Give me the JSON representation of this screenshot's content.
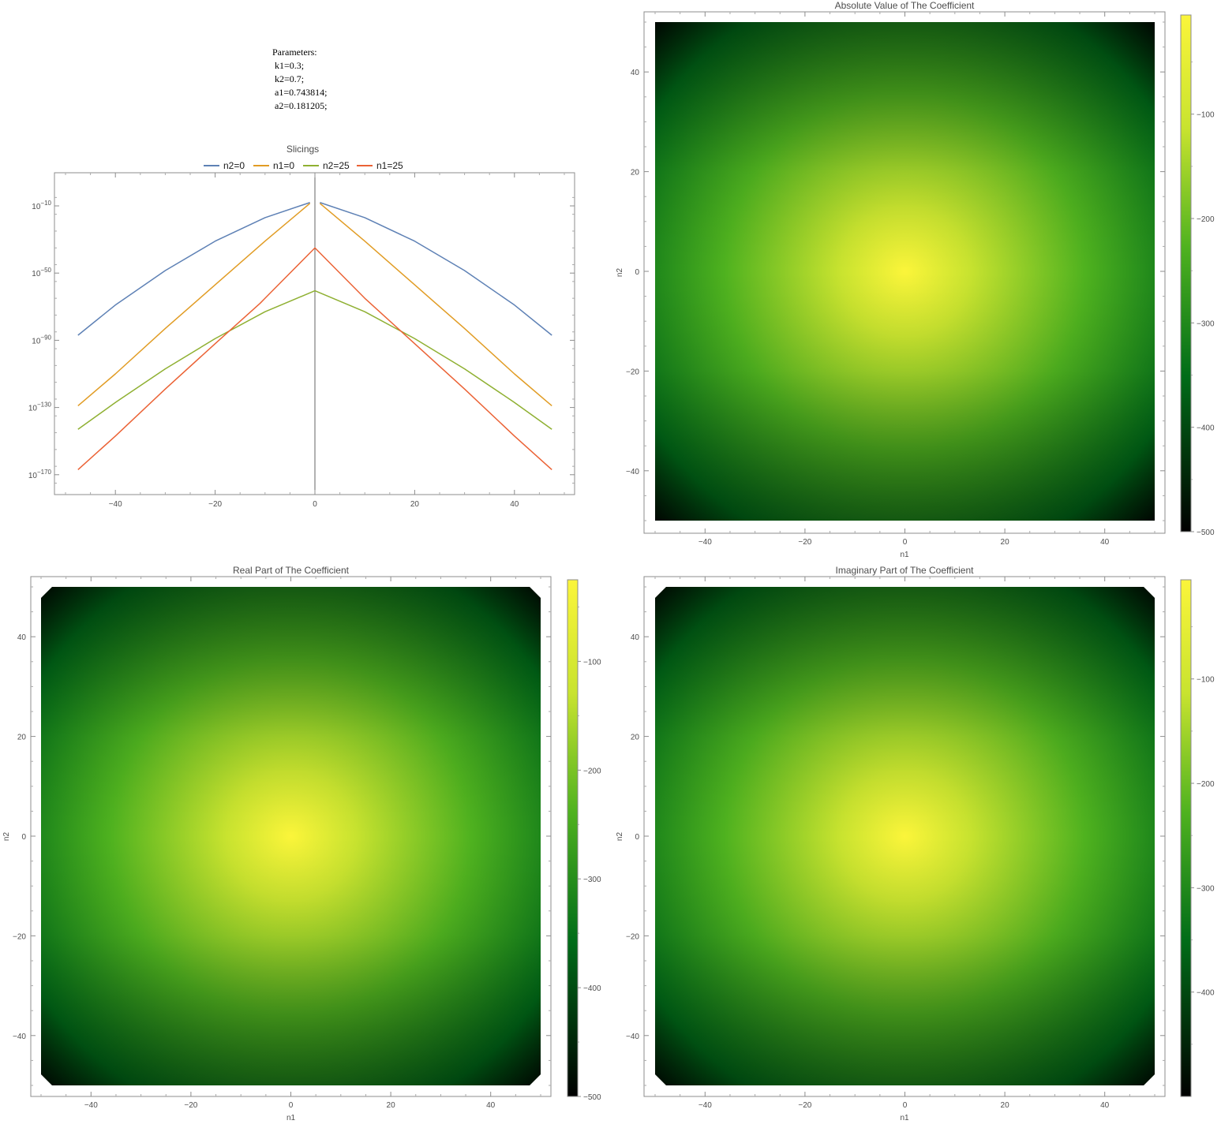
{
  "parameters": {
    "heading": "Parameters:",
    "lines": [
      "k1=0.3;",
      "k2=0.7;",
      "a1=0.743814;",
      "a2=0.181205;"
    ]
  },
  "chart_data": [
    {
      "type": "line",
      "title": "Slicings",
      "xlabel": "",
      "ylabel": "",
      "y_scale": "log",
      "xlim": [
        -50,
        50
      ],
      "ylim": [
        1e-180,
        0.0001
      ],
      "x_ticks": [
        -40,
        -20,
        0,
        20,
        40
      ],
      "y_ticks": [
        -10,
        -50,
        -90,
        -130,
        -170
      ],
      "y_tick_base": "10",
      "legend_position": "top",
      "series": [
        {
          "name": "n2=0",
          "color": "#5E81B5",
          "x": [
            -47.5,
            -40,
            -30,
            -20,
            -10,
            -1,
            1,
            10,
            20,
            30,
            40,
            47.5
          ],
          "log10_y": [
            -87,
            -69,
            -48.5,
            -31,
            -17,
            -8,
            -8,
            -17,
            -31,
            -48.5,
            -69,
            -87
          ]
        },
        {
          "name": "n1=0",
          "color": "#E19C24",
          "x": [
            -47.5,
            -40,
            -30,
            -20,
            -10,
            -1,
            1,
            10,
            20,
            30,
            40,
            47.5
          ],
          "log10_y": [
            -129,
            -110,
            -83,
            -57,
            -31,
            -8.5,
            -8.5,
            -31,
            -57,
            -83,
            -110,
            -129
          ]
        },
        {
          "name": "n2=25",
          "color": "#8FB032",
          "x": [
            -47.5,
            -40,
            -30,
            -20,
            -10,
            0,
            10,
            20,
            30,
            40,
            47.5
          ],
          "log10_y": [
            -143,
            -127,
            -107,
            -89,
            -73,
            -60.5,
            -73,
            -89,
            -107,
            -127,
            -143
          ]
        },
        {
          "name": "n1=25",
          "color": "#EB6235",
          "x": [
            -47.5,
            -40,
            -30,
            -20,
            -11,
            -10,
            0,
            10,
            20,
            30,
            40,
            47.5
          ],
          "log10_y": [
            -167,
            -147,
            -119,
            -92,
            -68,
            -65,
            -35,
            -65,
            -92,
            -119,
            -147,
            -167
          ]
        }
      ]
    },
    {
      "type": "heatmap",
      "title": "Absolute Value of The Coefficient",
      "xlabel": "n1",
      "ylabel": "n2",
      "xlim": [
        -50,
        50
      ],
      "ylim": [
        -50,
        50
      ],
      "x_ticks": [
        -40,
        -20,
        0,
        20,
        40
      ],
      "y_ticks": [
        40,
        20,
        0,
        -20,
        -40
      ],
      "colorbar": {
        "ticks": [
          -100,
          -200,
          -300,
          -400,
          -500
        ],
        "range": [
          -500,
          -5
        ]
      },
      "colors": [
        "#000000",
        "#006c18",
        "#4fb21f",
        "#c8e32f",
        "#fbf53a"
      ]
    },
    {
      "type": "heatmap",
      "title": "Real Part of The Coefficient",
      "xlabel": "n1",
      "ylabel": "n2",
      "xlim": [
        -50,
        50
      ],
      "ylim": [
        -50,
        50
      ],
      "x_ticks": [
        -40,
        -20,
        0,
        20,
        40
      ],
      "y_ticks": [
        40,
        20,
        0,
        -20,
        -40
      ],
      "colorbar": {
        "ticks": [
          -100,
          -200,
          -300,
          -400,
          -500
        ],
        "range": [
          -500,
          -25
        ]
      },
      "colors": [
        "#000000",
        "#006c18",
        "#4fb21f",
        "#c8e32f",
        "#fbf53a"
      ]
    },
    {
      "type": "heatmap",
      "title": "Imaginary Part of The Coefficient",
      "xlabel": "n1",
      "ylabel": "n2",
      "xlim": [
        -50,
        50
      ],
      "ylim": [
        -50,
        50
      ],
      "x_ticks": [
        -40,
        -20,
        0,
        20,
        40
      ],
      "y_ticks": [
        40,
        20,
        0,
        -20,
        -40
      ],
      "colorbar": {
        "ticks": [
          -100,
          -200,
          -300,
          -400
        ],
        "range": [
          -500,
          -5
        ]
      },
      "colors": [
        "#000000",
        "#006c18",
        "#4fb21f",
        "#c8e32f",
        "#fbf53a"
      ]
    }
  ]
}
